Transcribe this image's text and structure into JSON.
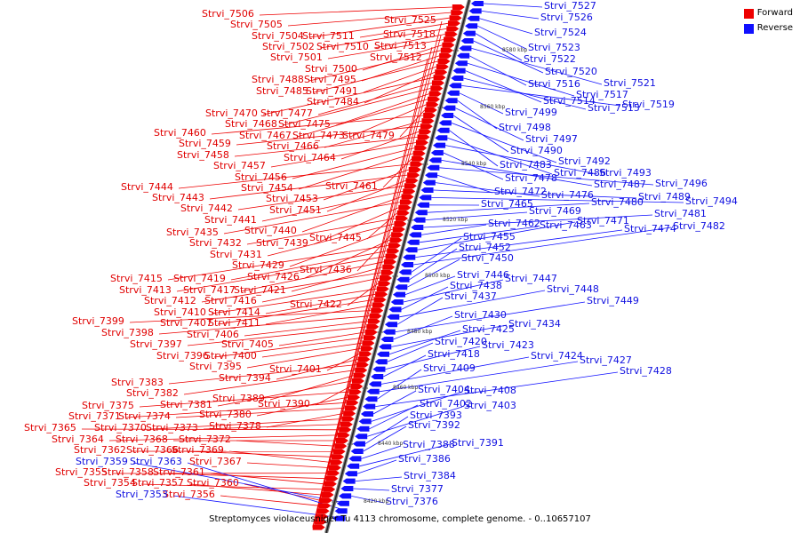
{
  "legend": {
    "forward_label": "Forward",
    "reverse_label": "Reverse",
    "forward_color": "#ee0000",
    "reverse_color": "#1010ff"
  },
  "caption": "Streptomyces violaceusniger Tu 4113 chromosome, complete genome. - 0..10657107",
  "ticks": [
    "8580 kbp",
    "8560 kbp",
    "8540 kbp",
    "8520 kbp",
    "8500 kbp",
    "8480 kbp",
    "8460 kbp",
    "8440 kbp",
    "8420 kbp"
  ],
  "forward_genes": [
    "Strvi_7506",
    "Strvi_7505",
    "Strvi_7504",
    "Strvi_7511",
    "Strvi_7502",
    "Strvi_7510",
    "Strvi_7501",
    "Strvi_7500",
    "Strvi_7488",
    "Strvi_7495",
    "Strvi_7485",
    "Strvi_7491",
    "Strvi_7484",
    "Strvi_7470",
    "Strvi_7477",
    "Strvi_7468",
    "Strvi_7475",
    "Strvi_7467",
    "Strvi_7473",
    "Strvi_7479",
    "Strvi_7460",
    "Strvi_7466",
    "Strvi_7459",
    "Strvi_7464",
    "Strvi_7458",
    "Strvi_7457",
    "Strvi_7456",
    "Strvi_7454",
    "Strvi_7461",
    "Strvi_7444",
    "Strvi_7453",
    "Strvi_7443",
    "Strvi_7451",
    "Strvi_7442",
    "Strvi_7441",
    "Strvi_7440",
    "Strvi_7435",
    "Strvi_7439",
    "Strvi_7445",
    "Strvi_7432",
    "Strvi_7431",
    "Strvi_7429",
    "Strvi_7436",
    "Strvi_7426",
    "Strvi_7415",
    "Strvi_7419",
    "Strvi_7413",
    "Strvi_7417",
    "Strvi_7421",
    "Strvi_7412",
    "Strvi_7416",
    "Strvi_7422",
    "Strvi_7410",
    "Strvi_7414",
    "Strvi_7407",
    "Strvi_7411",
    "Strvi_7399",
    "Strvi_7398",
    "Strvi_7406",
    "Strvi_7397",
    "Strvi_7405",
    "Strvi_7396",
    "Strvi_7400",
    "Strvi_7395",
    "Strvi_7401",
    "Strvi_7394",
    "Strvi_7383",
    "Strvi_7382",
    "Strvi_7389",
    "Strvi_7381",
    "Strvi_7390",
    "Strvi_7375",
    "Strvi_7380",
    "Strvi_7371",
    "Strvi_7374",
    "Strvi_7378",
    "Strvi_7370",
    "Strvi_7373",
    "Strvi_7365",
    "Strvi_7364",
    "Strvi_7368",
    "Strvi_7372",
    "Strvi_7362",
    "Strvi_7366",
    "Strvi_7369",
    "Strvi_7367",
    "Strvi_7355",
    "Strvi_7358",
    "Strvi_7361",
    "Strvi_7354",
    "Strvi_7357",
    "Strvi_7360",
    "Strvi_7356",
    "Strvi_7525",
    "Strvi_7518",
    "Strvi_7513",
    "Strvi_7512"
  ],
  "reverse_genes": [
    "Strvi_7527",
    "Strvi_7526",
    "Strvi_7524",
    "Strvi_7523",
    "Strvi_7522",
    "Strvi_7520",
    "Strvi_7521",
    "Strvi_7516",
    "Strvi_7517",
    "Strvi_7514",
    "Strvi_7515",
    "Strvi_7519",
    "Strvi_7499",
    "Strvi_7498",
    "Strvi_7497",
    "Strvi_7490",
    "Strvi_7492",
    "Strvi_7483",
    "Strvi_7486",
    "Strvi_7493",
    "Strvi_7478",
    "Strvi_7487",
    "Strvi_7496",
    "Strvi_7472",
    "Strvi_7476",
    "Strvi_7489",
    "Strvi_7494",
    "Strvi_7465",
    "Strvi_7480",
    "Strvi_7469",
    "Strvi_7481",
    "Strvi_7462",
    "Strvi_7463",
    "Strvi_7471",
    "Strvi_7474",
    "Strvi_7482",
    "Strvi_7455",
    "Strvi_7452",
    "Strvi_7450",
    "Strvi_7446",
    "Strvi_7447",
    "Strvi_7438",
    "Strvi_7448",
    "Strvi_7437",
    "Strvi_7449",
    "Strvi_7430",
    "Strvi_7434",
    "Strvi_7425",
    "Strvi_7420",
    "Strvi_7423",
    "Strvi_7418",
    "Strvi_7424",
    "Strvi_7427",
    "Strvi_7409",
    "Strvi_7428",
    "Strvi_7404",
    "Strvi_7408",
    "Strvi_7402",
    "Strvi_7403",
    "Strvi_7393",
    "Strvi_7392",
    "Strvi_7388",
    "Strvi_7391",
    "Strvi_7386",
    "Strvi_7384",
    "Strvi_7377",
    "Strvi_7376",
    "Strvi_7359",
    "Strvi_7363",
    "Strvi_7353"
  ]
}
